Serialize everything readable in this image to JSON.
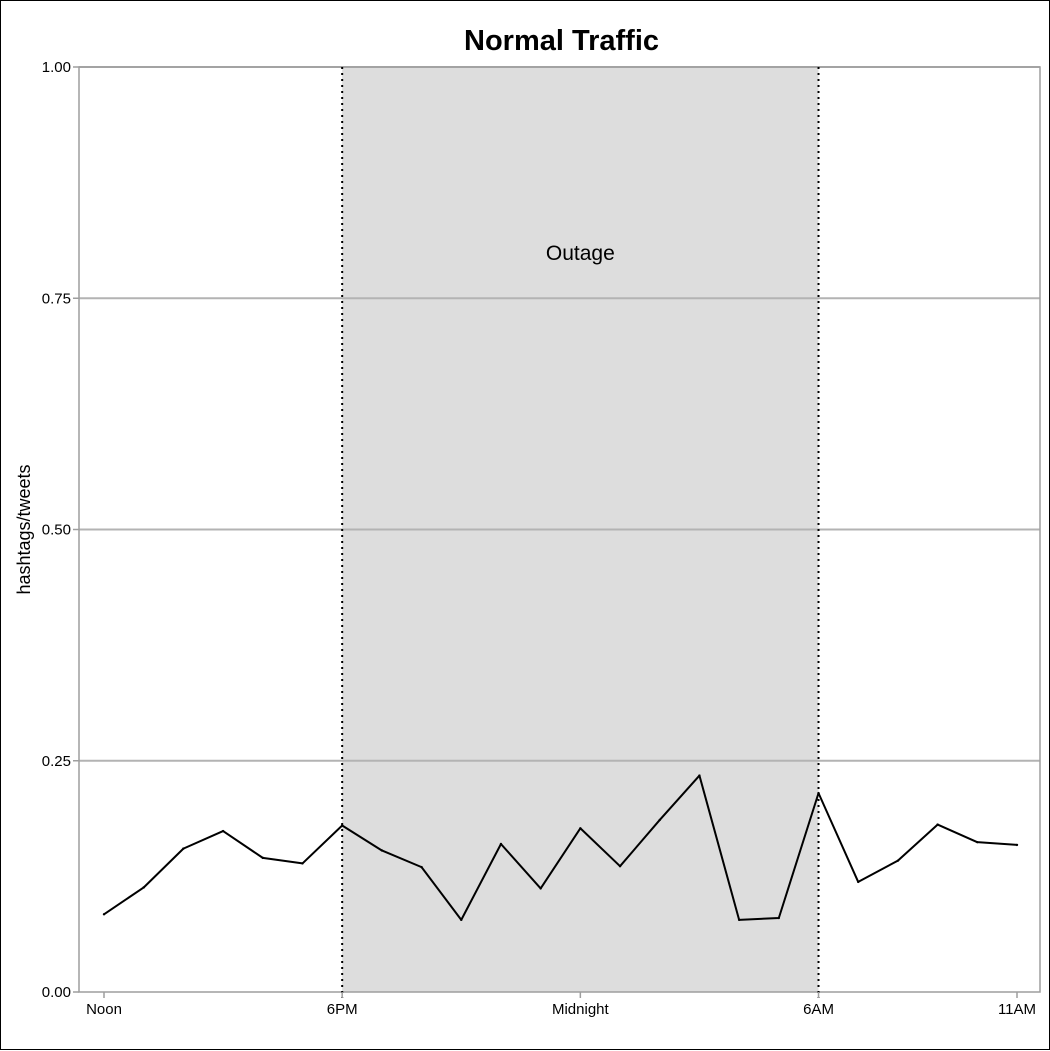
{
  "chart_data": {
    "type": "line",
    "title": "Normal Traffic",
    "xlabel": "",
    "ylabel": "hashtags/tweets",
    "ylim": [
      0,
      1
    ],
    "yticks": [
      {
        "value": 0.0,
        "label": "0.00"
      },
      {
        "value": 0.25,
        "label": "0.25"
      },
      {
        "value": 0.5,
        "label": "0.50"
      },
      {
        "value": 0.75,
        "label": "0.75"
      },
      {
        "value": 1.0,
        "label": "1.00"
      }
    ],
    "xlim": [
      0,
      23
    ],
    "xticks": [
      {
        "value": 0,
        "label": "Noon"
      },
      {
        "value": 6,
        "label": "6PM"
      },
      {
        "value": 12,
        "label": "Midnight"
      },
      {
        "value": 18,
        "label": "6AM"
      },
      {
        "value": 23,
        "label": "11AM"
      }
    ],
    "grid": "horizontal",
    "shaded_region": {
      "x_start": 6,
      "x_end": 18,
      "label": "Outage",
      "label_y": 0.8,
      "color": "#dddddd"
    },
    "series": [
      {
        "color": "#000000",
        "x": [
          0,
          1,
          2,
          3,
          4,
          5,
          6,
          7,
          8,
          9,
          10,
          11,
          12,
          13,
          14,
          15,
          16,
          17,
          18,
          19,
          20,
          21,
          22,
          23
        ],
        "values": [
          0.084,
          0.113,
          0.155,
          0.174,
          0.145,
          0.139,
          0.18,
          0.153,
          0.135,
          0.078,
          0.16,
          0.112,
          0.177,
          0.136,
          0.186,
          0.234,
          0.078,
          0.08,
          0.215,
          0.119,
          0.142,
          0.181,
          0.162,
          0.159
        ]
      }
    ]
  }
}
